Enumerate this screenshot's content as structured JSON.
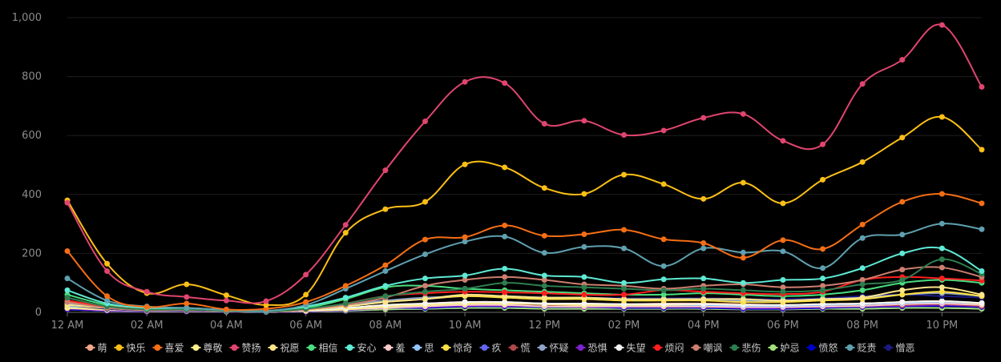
{
  "chart_data": {
    "type": "line",
    "title": "",
    "xlabel": "",
    "ylabel": "",
    "ylim": [
      0,
      1000
    ],
    "yticks": [
      "0",
      "200",
      "400",
      "600",
      "800",
      "1,000"
    ],
    "ytick_values": [
      0,
      200,
      400,
      600,
      800,
      1000
    ],
    "categories": [
      "12 AM",
      "1 AM",
      "02 AM",
      "3 AM",
      "04 AM",
      "5 AM",
      "06 AM",
      "7 AM",
      "08 AM",
      "9 AM",
      "10 AM",
      "11 AM",
      "12 PM",
      "1 PM",
      "02 PM",
      "3 PM",
      "04 PM",
      "5 PM",
      "06 PM",
      "7 PM",
      "08 PM",
      "9 PM",
      "10 PM",
      "11 PM"
    ],
    "xtick_labels": [
      "12 AM",
      "02 AM",
      "04 AM",
      "06 AM",
      "08 AM",
      "10 AM",
      "12 PM",
      "02 PM",
      "04 PM",
      "06 PM",
      "08 PM",
      "10 PM"
    ],
    "xtick_indices": [
      0,
      2,
      4,
      6,
      8,
      10,
      12,
      14,
      16,
      18,
      20,
      22
    ],
    "grid": true,
    "legend_position": "bottom",
    "series": [
      {
        "name": "萌",
        "color": "#f4a58a",
        "values": [
          20,
          10,
          5,
          5,
          3,
          2,
          5,
          12,
          25,
          30,
          35,
          35,
          30,
          30,
          28,
          30,
          30,
          28,
          25,
          28,
          30,
          35,
          35,
          30
        ]
      },
      {
        "name": "快乐",
        "color": "#fbbf16",
        "values": [
          380,
          165,
          65,
          95,
          58,
          25,
          60,
          270,
          350,
          375,
          502,
          492,
          422,
          402,
          467,
          435,
          385,
          440,
          370,
          450,
          510,
          593,
          663,
          552
        ]
      },
      {
        "name": "喜爱",
        "color": "#f56e15",
        "values": [
          208,
          55,
          18,
          30,
          10,
          12,
          35,
          90,
          160,
          247,
          255,
          295,
          260,
          265,
          280,
          248,
          235,
          185,
          245,
          215,
          298,
          375,
          402,
          370
        ]
      },
      {
        "name": "尊敬",
        "color": "#fef08a",
        "values": [
          15,
          10,
          5,
          5,
          3,
          2,
          5,
          10,
          20,
          25,
          30,
          30,
          28,
          25,
          25,
          25,
          28,
          25,
          25,
          28,
          30,
          35,
          38,
          30
        ]
      },
      {
        "name": "赞扬",
        "color": "#e0456e",
        "values": [
          372,
          140,
          70,
          52,
          40,
          38,
          128,
          297,
          482,
          648,
          782,
          778,
          640,
          650,
          602,
          617,
          660,
          673,
          582,
          570,
          775,
          857,
          975,
          765
        ]
      },
      {
        "name": "祝愿",
        "color": "#fde68a",
        "values": [
          25,
          15,
          8,
          10,
          5,
          3,
          8,
          20,
          35,
          45,
          60,
          55,
          50,
          50,
          45,
          45,
          45,
          45,
          40,
          45,
          50,
          75,
          85,
          60
        ]
      },
      {
        "name": "相信",
        "color": "#4ade80",
        "values": [
          60,
          25,
          10,
          12,
          5,
          3,
          15,
          45,
          85,
          90,
          80,
          75,
          70,
          65,
          60,
          60,
          65,
          60,
          55,
          60,
          75,
          100,
          110,
          100
        ]
      },
      {
        "name": "安心",
        "color": "#5eead4",
        "values": [
          75,
          30,
          15,
          15,
          8,
          5,
          20,
          50,
          90,
          115,
          125,
          148,
          125,
          120,
          100,
          112,
          115,
          100,
          110,
          115,
          150,
          200,
          217,
          140
        ]
      },
      {
        "name": "羞",
        "color": "#fecaca",
        "values": [
          15,
          8,
          5,
          5,
          3,
          2,
          5,
          10,
          15,
          20,
          25,
          25,
          20,
          20,
          20,
          20,
          20,
          18,
          18,
          20,
          22,
          28,
          30,
          25
        ]
      },
      {
        "name": "思",
        "color": "#93c5fd",
        "values": [
          20,
          10,
          5,
          5,
          3,
          2,
          5,
          10,
          20,
          25,
          30,
          30,
          28,
          25,
          25,
          25,
          25,
          22,
          22,
          25,
          28,
          32,
          35,
          30
        ]
      },
      {
        "name": "惊奇",
        "color": "#fde047",
        "values": [
          35,
          15,
          8,
          8,
          5,
          3,
          8,
          20,
          35,
          45,
          55,
          50,
          45,
          45,
          40,
          40,
          40,
          35,
          35,
          40,
          45,
          60,
          70,
          55
        ]
      },
      {
        "name": "疚",
        "color": "#6366f1",
        "values": [
          10,
          5,
          3,
          3,
          2,
          1,
          3,
          5,
          10,
          12,
          15,
          15,
          12,
          12,
          12,
          12,
          12,
          10,
          10,
          12,
          12,
          15,
          15,
          12
        ]
      },
      {
        "name": "慌",
        "color": "#b04848",
        "values": [
          15,
          8,
          5,
          5,
          3,
          2,
          5,
          10,
          18,
          22,
          25,
          25,
          22,
          22,
          20,
          20,
          20,
          18,
          18,
          20,
          22,
          25,
          28,
          22
        ]
      },
      {
        "name": "怀疑",
        "color": "#8ea3c7",
        "values": [
          30,
          15,
          8,
          8,
          5,
          3,
          10,
          25,
          40,
          50,
          55,
          55,
          50,
          50,
          45,
          45,
          45,
          40,
          40,
          45,
          50,
          60,
          65,
          55
        ]
      },
      {
        "name": "恐惧",
        "color": "#7e22ce",
        "values": [
          12,
          6,
          3,
          3,
          2,
          1,
          3,
          8,
          15,
          18,
          22,
          22,
          20,
          18,
          18,
          18,
          18,
          15,
          15,
          18,
          20,
          22,
          25,
          20
        ]
      },
      {
        "name": "失望",
        "color": "#f5f5f5",
        "values": [
          30,
          12,
          6,
          6,
          4,
          2,
          6,
          15,
          25,
          30,
          35,
          35,
          30,
          30,
          28,
          28,
          28,
          25,
          25,
          28,
          30,
          35,
          38,
          32
        ]
      },
      {
        "name": "烦闷",
        "color": "#ff1f1f",
        "values": [
          40,
          20,
          10,
          10,
          5,
          3,
          10,
          30,
          55,
          65,
          70,
          68,
          65,
          60,
          60,
          75,
          70,
          65,
          62,
          70,
          110,
          120,
          115,
          108
        ]
      },
      {
        "name": "嘲讽",
        "color": "#cd7f6e",
        "values": [
          35,
          15,
          8,
          8,
          5,
          3,
          10,
          25,
          50,
          90,
          110,
          120,
          110,
          95,
          90,
          80,
          90,
          95,
          85,
          90,
          110,
          145,
          152,
          120
        ]
      },
      {
        "name": "悲伤",
        "color": "#2e7d4f",
        "values": [
          50,
          20,
          10,
          10,
          5,
          3,
          12,
          30,
          55,
          70,
          80,
          100,
          90,
          85,
          80,
          75,
          80,
          75,
          70,
          75,
          95,
          110,
          180,
          130
        ]
      },
      {
        "name": "妒忌",
        "color": "#a3e07a",
        "values": [
          10,
          5,
          3,
          3,
          2,
          1,
          3,
          6,
          10,
          12,
          15,
          15,
          12,
          12,
          12,
          12,
          12,
          10,
          10,
          12,
          12,
          15,
          15,
          12
        ]
      },
      {
        "name": "愤怒",
        "color": "#0000cd",
        "values": [
          10,
          5,
          3,
          3,
          2,
          1,
          3,
          8,
          15,
          15,
          20,
          20,
          18,
          18,
          15,
          15,
          15,
          12,
          12,
          15,
          18,
          20,
          22,
          18
        ]
      },
      {
        "name": "贬责",
        "color": "#5fa0b0",
        "values": [
          115,
          40,
          20,
          15,
          8,
          5,
          25,
          80,
          140,
          197,
          240,
          257,
          202,
          222,
          217,
          157,
          217,
          203,
          207,
          150,
          252,
          264,
          301,
          282
        ]
      },
      {
        "name": "憎恶",
        "color": "#1a1a80",
        "values": [
          25,
          12,
          6,
          6,
          4,
          2,
          8,
          20,
          40,
          45,
          55,
          55,
          50,
          50,
          48,
          48,
          48,
          45,
          45,
          48,
          55,
          60,
          55,
          50
        ]
      }
    ]
  }
}
